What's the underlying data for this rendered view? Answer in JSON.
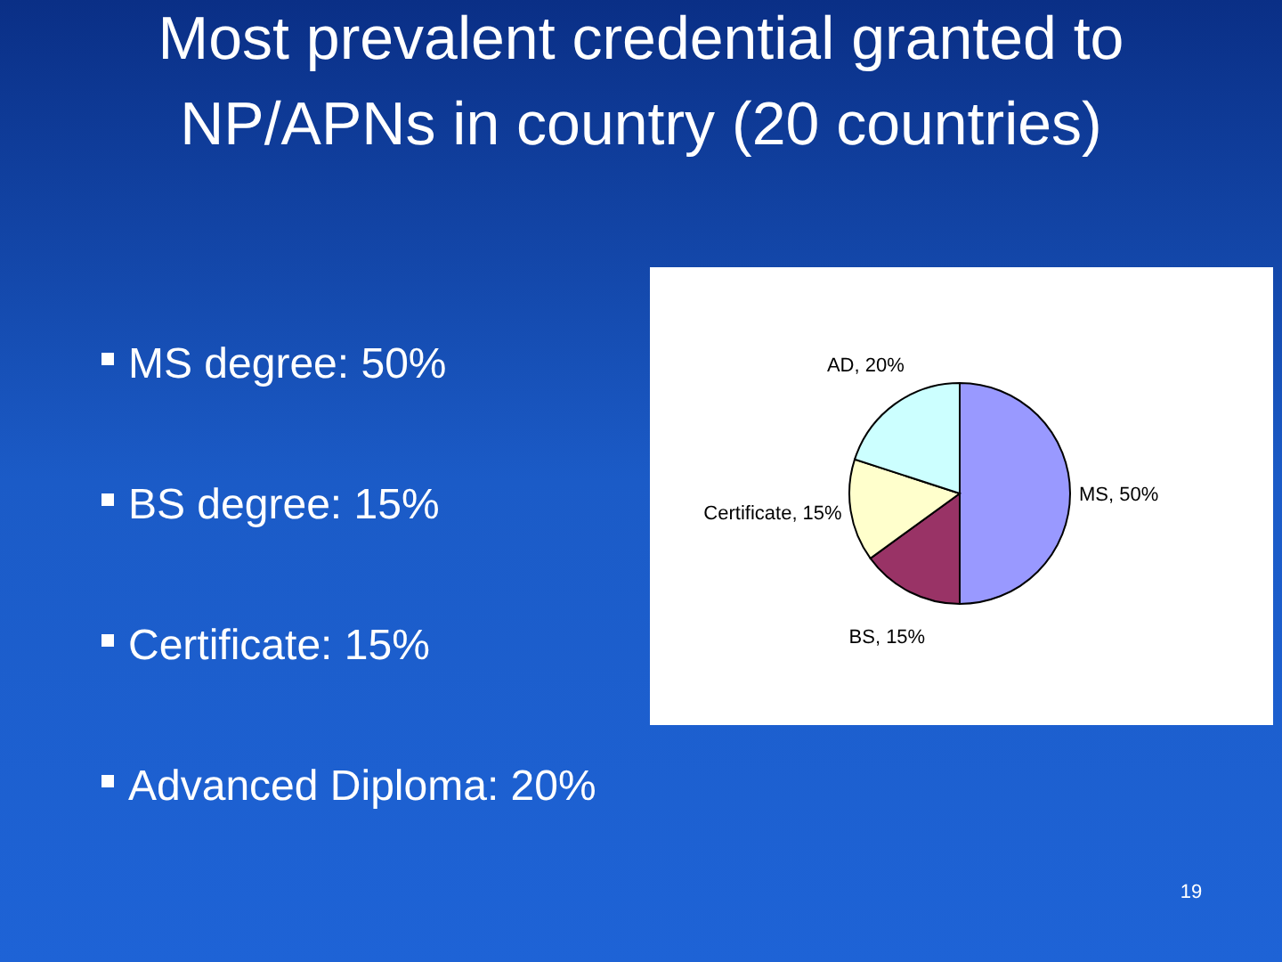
{
  "chart_data": {
    "type": "pie",
    "title": "Most prevalent credential granted to NP/APNs in country (20 countries)",
    "categories": [
      "MS",
      "BS",
      "Certificate",
      "AD"
    ],
    "values": [
      50,
      15,
      15,
      20
    ],
    "colors": [
      "#9999ff",
      "#993366",
      "#ffffcc",
      "#ccffff"
    ],
    "value_labels": [
      "50%",
      "15%",
      "15%",
      "20%"
    ],
    "annotations": [
      "MS degree: 50%",
      "BS degree: 15%",
      "Certificate: 15%",
      "Advanced Diploma: 20%",
      "19"
    ]
  }
}
